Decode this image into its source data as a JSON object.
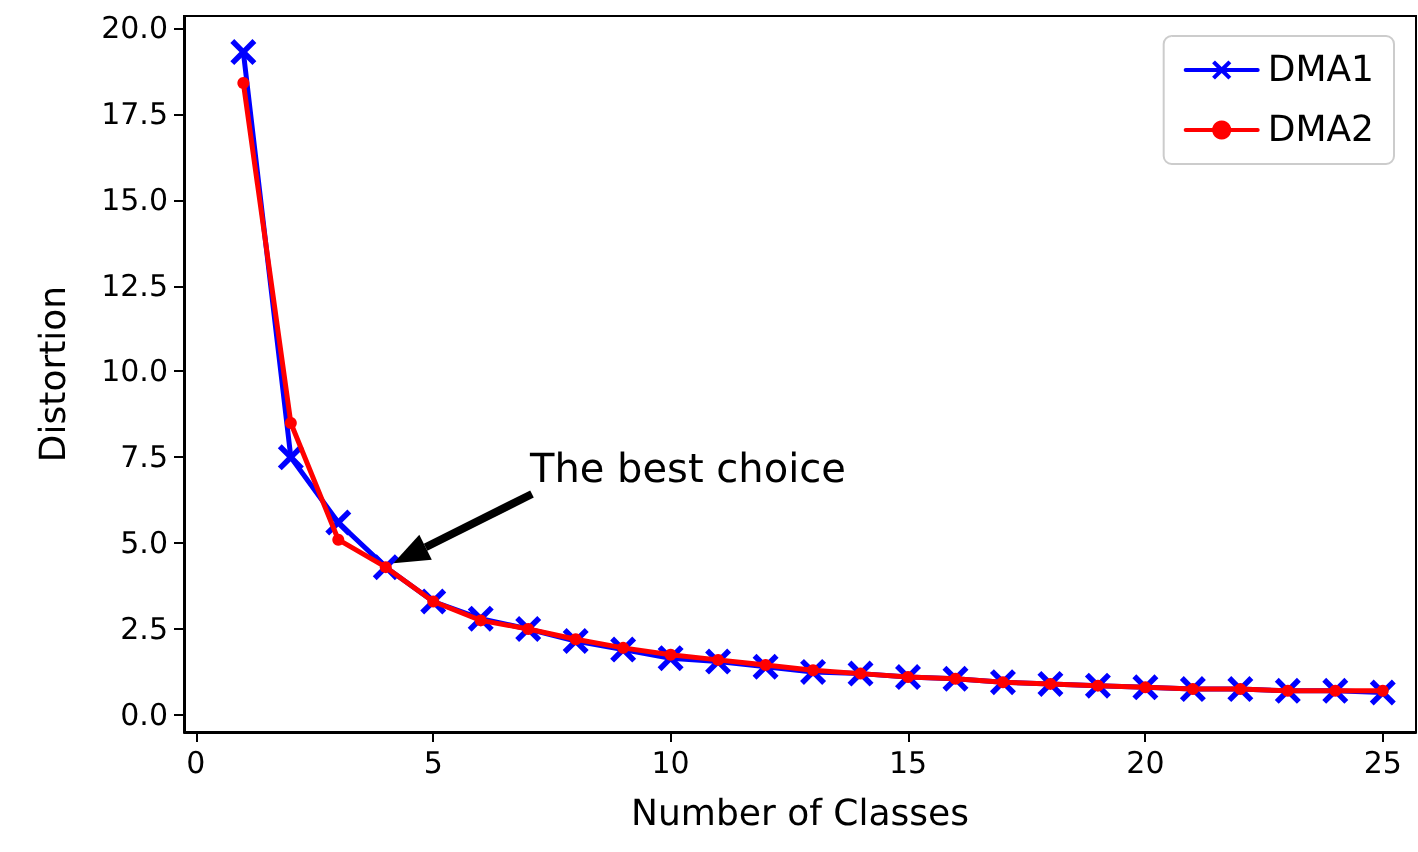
{
  "chart_data": {
    "type": "line",
    "xlabel": "Number of Classes",
    "ylabel": "Distortion",
    "x": [
      1,
      2,
      3,
      4,
      5,
      6,
      7,
      8,
      9,
      10,
      11,
      12,
      13,
      14,
      15,
      16,
      17,
      18,
      19,
      20,
      21,
      22,
      23,
      24,
      25
    ],
    "series": [
      {
        "name": "DMA1",
        "color": "#0000ff",
        "marker": "cross",
        "values": [
          19.3,
          7.5,
          5.6,
          4.3,
          3.3,
          2.8,
          2.5,
          2.15,
          1.9,
          1.65,
          1.55,
          1.4,
          1.25,
          1.2,
          1.1,
          1.05,
          0.95,
          0.9,
          0.85,
          0.8,
          0.75,
          0.75,
          0.7,
          0.7,
          0.65
        ]
      },
      {
        "name": "DMA2",
        "color": "#ff0000",
        "marker": "circle",
        "values": [
          18.4,
          8.5,
          5.1,
          4.3,
          3.3,
          2.75,
          2.5,
          2.2,
          1.95,
          1.75,
          1.6,
          1.45,
          1.3,
          1.2,
          1.1,
          1.05,
          0.95,
          0.9,
          0.85,
          0.8,
          0.75,
          0.75,
          0.7,
          0.7,
          0.7
        ]
      }
    ],
    "xlim": [
      -0.25,
      25.7
    ],
    "xticks": [
      0,
      5,
      10,
      15,
      20,
      25
    ],
    "ylim": [
      -0.5,
      20.35
    ],
    "yticks": [
      {
        "value": 0,
        "label": "0.0"
      },
      {
        "value": 2.5,
        "label": "2.5"
      },
      {
        "value": 5,
        "label": "5.0"
      },
      {
        "value": 7.5,
        "label": "7.5"
      },
      {
        "value": 10,
        "label": "10.0"
      },
      {
        "value": 12.5,
        "label": "12.5"
      },
      {
        "value": 15,
        "label": "15.0"
      },
      {
        "value": 17.5,
        "label": "17.5"
      },
      {
        "value": 20,
        "label": "20.0"
      }
    ],
    "annotations": [
      "The best choice"
    ],
    "grid": false,
    "legend": "top right",
    "line_style": "solid"
  }
}
